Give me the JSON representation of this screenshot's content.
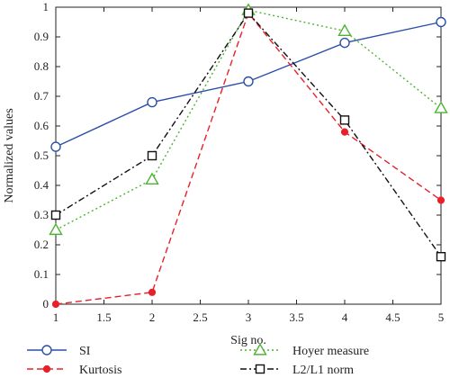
{
  "chart_data": {
    "type": "line",
    "title": "",
    "xlabel": "Sig no.",
    "ylabel": "Normalized values",
    "xlim": [
      1,
      5
    ],
    "ylim": [
      0,
      1
    ],
    "x_ticks": [
      "1",
      "1.5",
      "2",
      "2.5",
      "3",
      "3.5",
      "4",
      "4.5",
      "5"
    ],
    "y_ticks": [
      "0",
      "0.1",
      "0.2",
      "0.3",
      "0.4",
      "0.5",
      "0.6",
      "0.7",
      "0.8",
      "0.9",
      "1"
    ],
    "x": [
      1,
      2,
      3,
      4,
      5
    ],
    "grid": false,
    "legend_position": "bottom",
    "series": [
      {
        "name": "SI",
        "values": [
          0.53,
          0.68,
          0.75,
          0.88,
          0.95
        ],
        "color": "#2b4fa8",
        "line_style": "solid",
        "marker": "circle"
      },
      {
        "name": "Kurtosis",
        "values": [
          0.0,
          0.04,
          0.98,
          0.58,
          0.35
        ],
        "color": "#e8202a",
        "line_style": "dashed",
        "marker": "filled-circle"
      },
      {
        "name": "Hoyer measure",
        "values": [
          0.25,
          0.42,
          0.99,
          0.92,
          0.66
        ],
        "color": "#4db233",
        "line_style": "dotted",
        "marker": "triangle"
      },
      {
        "name": "L2/L1 norm",
        "values": [
          0.3,
          0.5,
          0.98,
          0.62,
          0.16
        ],
        "color": "#111111",
        "line_style": "dash-dot",
        "marker": "square"
      }
    ]
  }
}
